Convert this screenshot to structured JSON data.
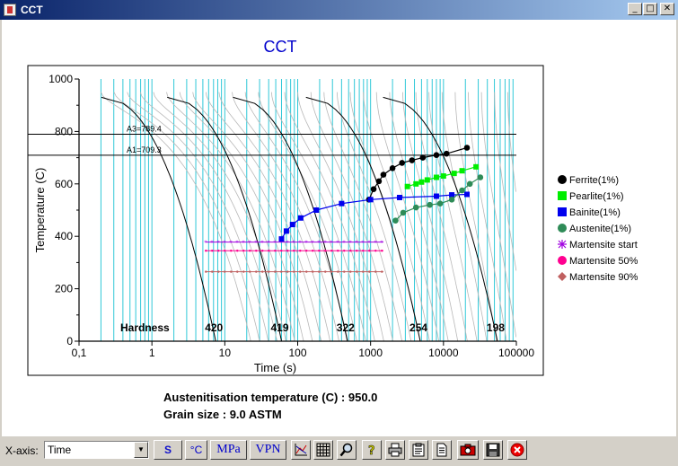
{
  "window": {
    "title": "CCT"
  },
  "window_buttons": {
    "minimize": "_",
    "maximize": "□",
    "close": "✕"
  },
  "chart_data": {
    "type": "scatter",
    "title": "CCT",
    "xlabel": "Time (s)",
    "ylabel": "Temperature (C)",
    "xscale": "log",
    "xlim": [
      0.1,
      100000
    ],
    "ylim": [
      0,
      1000
    ],
    "x_tick_labels": [
      "0,1",
      "1",
      "10",
      "100",
      "1000",
      "10000",
      "100000"
    ],
    "y_tick_labels": [
      "0",
      "200",
      "400",
      "600",
      "800",
      "1000"
    ],
    "reference_lines": [
      {
        "label": "A3=789.4",
        "y": 789.4
      },
      {
        "label": "A1=709.3",
        "y": 709.3
      }
    ],
    "hardness": {
      "label": "Hardness",
      "values": [
        {
          "value": "420",
          "x": 7.5
        },
        {
          "value": "419",
          "x": 60
        },
        {
          "value": "322",
          "x": 480
        },
        {
          "value": "254",
          "x": 4800
        },
        {
          "value": "198",
          "x": 55000
        }
      ]
    },
    "series": [
      {
        "name": "Ferrite(1%)",
        "color": "#000000",
        "marker": "circle",
        "points": [
          [
            950,
            540
          ],
          [
            1100,
            580
          ],
          [
            1300,
            610
          ],
          [
            1500,
            635
          ],
          [
            2000,
            660
          ],
          [
            2700,
            680
          ],
          [
            3700,
            690
          ],
          [
            5200,
            700
          ],
          [
            8000,
            710
          ],
          [
            11000,
            715
          ],
          [
            21000,
            738
          ]
        ]
      },
      {
        "name": "Pearlite(1%)",
        "color": "#00ee00",
        "marker": "square",
        "points": [
          [
            3200,
            590
          ],
          [
            4200,
            600
          ],
          [
            5000,
            607
          ],
          [
            6000,
            615
          ],
          [
            8000,
            625
          ],
          [
            10000,
            630
          ],
          [
            14000,
            640
          ],
          [
            18000,
            650
          ],
          [
            28000,
            665
          ]
        ]
      },
      {
        "name": "Bainite(1%)",
        "color": "#0000ee",
        "marker": "square",
        "points": [
          [
            60,
            390
          ],
          [
            70,
            420
          ],
          [
            85,
            445
          ],
          [
            110,
            470
          ],
          [
            180,
            500
          ],
          [
            400,
            525
          ],
          [
            1000,
            540
          ],
          [
            2500,
            548
          ],
          [
            8000,
            553
          ],
          [
            13000,
            558
          ],
          [
            21000,
            560
          ]
        ]
      },
      {
        "name": "Austenite(1%)",
        "color": "#2e8b57",
        "marker": "circle",
        "points": [
          [
            2200,
            460
          ],
          [
            2800,
            490
          ],
          [
            4200,
            510
          ],
          [
            6500,
            520
          ],
          [
            9000,
            525
          ],
          [
            13000,
            540
          ],
          [
            18000,
            575
          ],
          [
            23000,
            600
          ],
          [
            32000,
            625
          ]
        ]
      },
      {
        "name": "Martensite start",
        "color": "#a000e0",
        "marker": "asterisk",
        "y": 378,
        "x_range": [
          5.5,
          1500
        ]
      },
      {
        "name": "Martensite 50%",
        "color": "#ff0090",
        "marker": "circle",
        "y": 345,
        "x_range": [
          5.5,
          1500
        ]
      },
      {
        "name": "Martensite 90%",
        "color": "#c06060",
        "marker": "diamond",
        "y": 265,
        "x_range": [
          5.5,
          1500
        ]
      }
    ],
    "cooling_curves": {
      "start_temperature": 950
    },
    "legend_position": "right",
    "grid": false
  },
  "info": {
    "austenitisation": "Austenitisation temperature (C) : 950.0",
    "grain_size": "Grain size : 9.0 ASTM"
  },
  "toolbar": {
    "xaxis_label": "X-axis:",
    "xaxis_value": "Time",
    "buttons": [
      {
        "name": "seconds-button",
        "label": "S"
      },
      {
        "name": "celsius-button",
        "label": "°C"
      },
      {
        "name": "mpa-button",
        "label": "MPa"
      },
      {
        "name": "vpn-button",
        "label": "VPN"
      }
    ],
    "icon_buttons": [
      "chart-icon",
      "grid-icon",
      "zoom-icon",
      "help-icon",
      "print-icon",
      "clipboard-icon",
      "document-icon",
      "camera-icon",
      "save-icon",
      "close-icon"
    ]
  }
}
